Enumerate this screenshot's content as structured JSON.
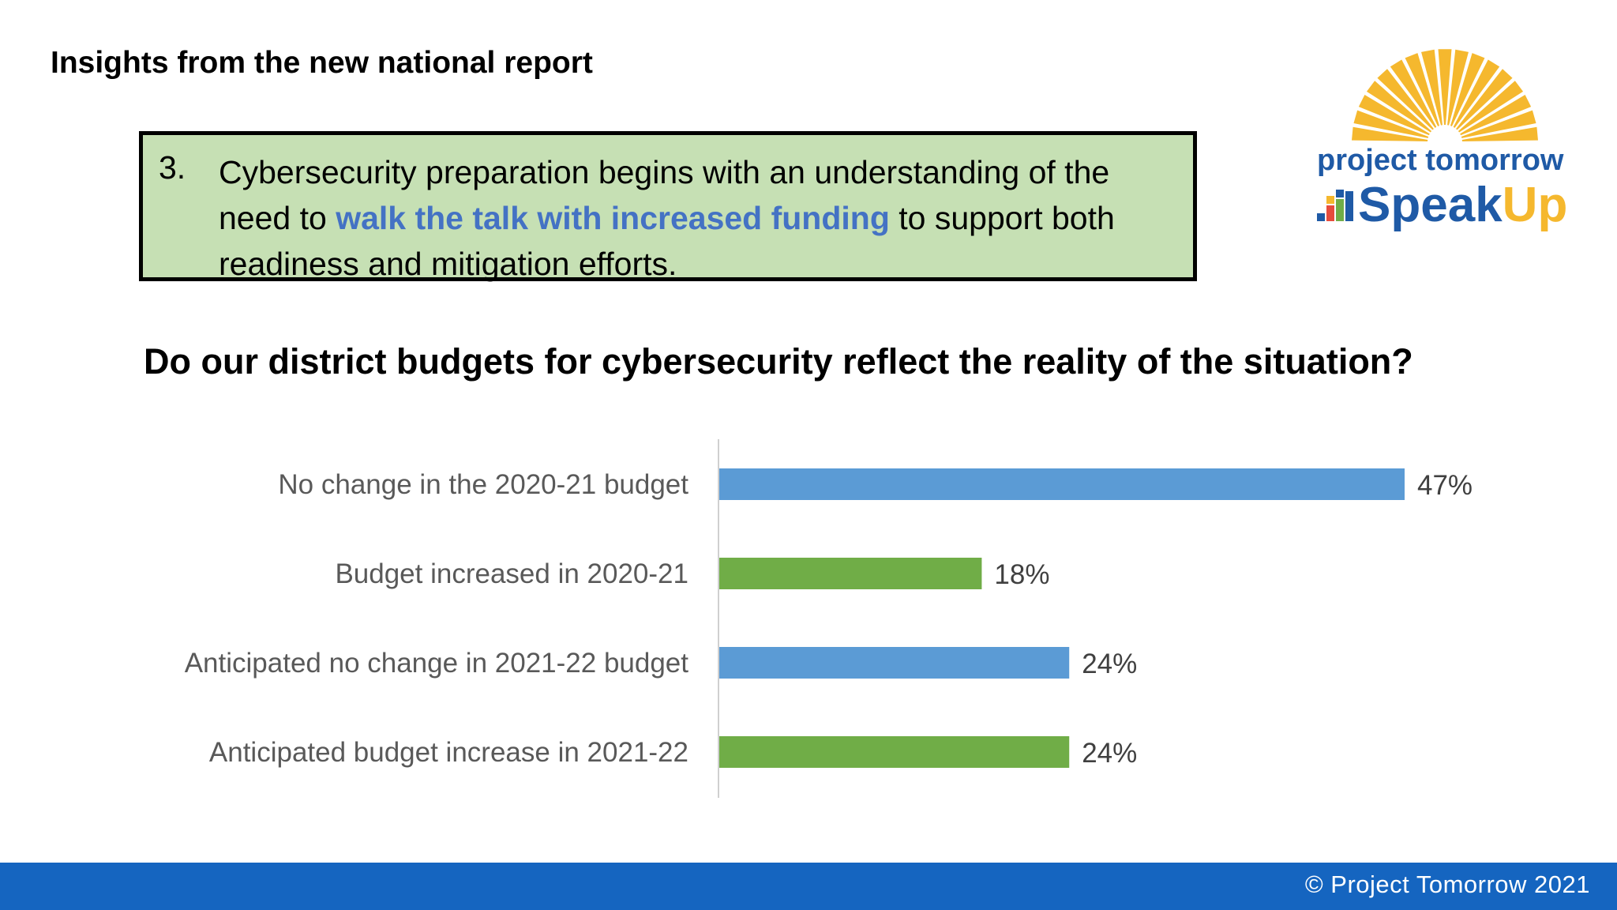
{
  "slide": {
    "title": "Insights from the new national report",
    "insight": {
      "number": "3.",
      "text_before": "Cybersecurity preparation begins with an understanding of the need to ",
      "highlight": "walk the talk with increased funding",
      "text_after": " to support both readiness and mitigation efforts."
    },
    "logo": {
      "line1": "project tomorrow",
      "line2_a": "Speak",
      "line2_b": "Up"
    },
    "footer": "© Project Tomorrow 2021"
  },
  "colors": {
    "blue_bar": "#5b9bd5",
    "green_bar": "#70ad47",
    "box_fill": "#c6e0b4",
    "highlight": "#4472c4",
    "footer": "#1565c0",
    "logo_sun": "#f5b82e",
    "logo_text": "#1f5aa6"
  },
  "chart_data": {
    "type": "bar",
    "orientation": "horizontal",
    "title": "Do our district budgets for cybersecurity reflect the reality of the situation?",
    "categories": [
      "No change in the 2020-21 budget",
      "Budget increased in 2020-21",
      "Anticipated no change in 2021-22 budget",
      "Anticipated budget increase in 2021-22"
    ],
    "values": [
      47,
      18,
      24,
      24
    ],
    "value_labels": [
      "47%",
      "18%",
      "24%",
      "24%"
    ],
    "bar_colors": [
      "#5b9bd5",
      "#70ad47",
      "#5b9bd5",
      "#70ad47"
    ],
    "xlim": [
      0,
      47
    ],
    "grid": false,
    "legend": "none"
  }
}
